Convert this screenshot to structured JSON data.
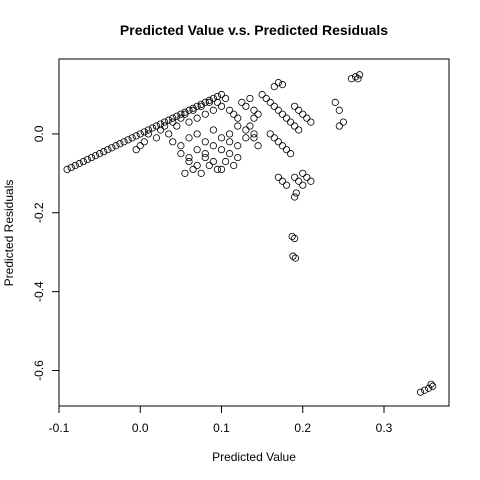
{
  "chart_data": {
    "type": "scatter",
    "title": "Predicted Value v.s. Predicted Residuals",
    "xlabel": "Predicted Value",
    "ylabel": "Predicted Residuals",
    "xlim": [
      -0.1,
      0.38
    ],
    "ylim": [
      -0.69,
      0.19
    ],
    "xticks": [
      -0.1,
      0.0,
      0.1,
      0.2,
      0.3
    ],
    "xtick_labels": [
      "-0.1",
      "0.0",
      "0.1",
      "0.2",
      "0.3"
    ],
    "yticks": [
      -0.6,
      -0.4,
      -0.2,
      0.0
    ],
    "ytick_labels": [
      "-0.6",
      "-0.4",
      "-0.2",
      "0.0"
    ],
    "marker": "open-circle",
    "grid": false,
    "series": [
      {
        "x": [
          -0.09,
          -0.085,
          -0.08,
          -0.075,
          -0.07,
          -0.065,
          -0.06,
          -0.055,
          -0.05,
          -0.045,
          -0.04,
          -0.035,
          -0.03,
          -0.025,
          -0.02,
          -0.015,
          -0.01,
          -0.005,
          0.0,
          0.005,
          0.01,
          0.015,
          0.02,
          0.025,
          0.03,
          0.035,
          0.04,
          0.045,
          0.05,
          0.055,
          0.06,
          0.065,
          0.07,
          0.075,
          0.08,
          0.085,
          0.09,
          0.095,
          0.1,
          0.0,
          0.005,
          -0.005,
          0.01,
          0.02,
          0.025,
          0.03,
          0.035,
          0.04,
          0.045,
          0.05,
          0.055,
          0.06,
          0.065,
          0.07,
          0.075,
          0.08,
          0.085,
          0.09,
          0.095,
          0.1,
          0.105,
          0.11,
          0.115,
          0.12,
          0.125,
          0.13,
          0.135,
          0.14,
          0.145,
          0.04,
          0.05,
          0.06,
          0.07,
          0.08,
          0.09,
          0.1,
          0.11,
          0.12,
          0.13,
          0.14,
          0.05,
          0.06,
          0.07,
          0.08,
          0.09,
          0.1,
          0.11,
          0.12,
          0.13,
          0.06,
          0.07,
          0.08,
          0.09,
          0.1,
          0.11,
          0.12,
          0.055,
          0.065,
          0.075,
          0.085,
          0.095,
          0.105,
          0.115,
          0.15,
          0.155,
          0.16,
          0.165,
          0.17,
          0.175,
          0.18,
          0.185,
          0.19,
          0.195,
          0.16,
          0.165,
          0.17,
          0.175,
          0.18,
          0.185,
          0.19,
          0.195,
          0.2,
          0.205,
          0.21,
          0.2,
          0.205,
          0.21,
          0.19,
          0.195,
          0.2,
          0.17,
          0.175,
          0.18,
          0.19,
          0.192,
          0.187,
          0.19,
          0.188,
          0.191,
          0.24,
          0.245,
          0.25,
          0.245,
          0.26,
          0.265,
          0.27,
          0.268,
          0.345,
          0.35,
          0.355,
          0.36,
          0.358,
          0.165,
          0.17,
          0.175,
          0.135,
          0.14,
          0.145,
          0.14
        ],
        "y": [
          -0.09,
          -0.085,
          -0.08,
          -0.075,
          -0.07,
          -0.065,
          -0.06,
          -0.055,
          -0.05,
          -0.045,
          -0.04,
          -0.035,
          -0.03,
          -0.025,
          -0.02,
          -0.015,
          -0.01,
          -0.005,
          0.0,
          0.005,
          0.01,
          0.015,
          0.02,
          0.025,
          0.03,
          0.035,
          0.04,
          0.045,
          0.05,
          0.055,
          0.06,
          0.065,
          0.07,
          0.075,
          0.08,
          0.085,
          0.09,
          0.095,
          0.1,
          -0.03,
          -0.02,
          -0.04,
          0.0,
          -0.01,
          0.01,
          0.02,
          0.0,
          0.03,
          0.02,
          0.04,
          0.05,
          0.03,
          0.06,
          0.04,
          0.07,
          0.05,
          0.08,
          0.06,
          0.08,
          0.07,
          0.09,
          0.06,
          0.05,
          0.04,
          0.08,
          0.07,
          0.09,
          0.06,
          0.05,
          -0.02,
          -0.03,
          -0.01,
          0.0,
          -0.02,
          0.01,
          -0.01,
          0.0,
          0.02,
          0.01,
          0.0,
          -0.05,
          -0.06,
          -0.04,
          -0.05,
          -0.03,
          -0.04,
          -0.02,
          -0.03,
          -0.01,
          -0.07,
          -0.08,
          -0.06,
          -0.07,
          -0.09,
          -0.05,
          -0.06,
          -0.1,
          -0.09,
          -0.1,
          -0.08,
          -0.09,
          -0.07,
          -0.08,
          0.1,
          0.09,
          0.08,
          0.07,
          0.06,
          0.05,
          0.04,
          0.03,
          0.02,
          0.01,
          0.0,
          -0.01,
          -0.02,
          -0.03,
          -0.04,
          -0.05,
          0.07,
          0.06,
          0.05,
          0.04,
          0.03,
          -0.1,
          -0.11,
          -0.12,
          -0.11,
          -0.12,
          -0.13,
          -0.11,
          -0.12,
          -0.13,
          -0.16,
          -0.15,
          -0.26,
          -0.265,
          -0.31,
          -0.315,
          0.08,
          0.06,
          0.03,
          0.02,
          0.14,
          0.145,
          0.15,
          0.14,
          -0.655,
          -0.65,
          -0.645,
          -0.64,
          -0.635,
          0.12,
          0.13,
          0.125,
          0.02,
          -0.01,
          -0.03,
          0.04
        ]
      }
    ]
  }
}
